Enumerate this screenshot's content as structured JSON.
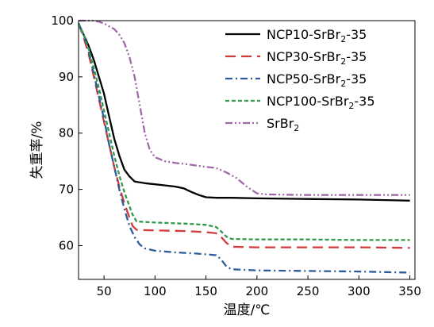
{
  "chart_data": {
    "type": "line",
    "title": "",
    "xlabel": "温度/℃",
    "ylabel": "失重率/%",
    "xlim": [
      25,
      355
    ],
    "ylim": [
      54,
      100
    ],
    "xticks": [
      50,
      100,
      150,
      200,
      250,
      300,
      350
    ],
    "yticks": [
      60,
      70,
      80,
      90,
      100
    ],
    "grid": false,
    "legend": "top-right",
    "series": [
      {
        "name": "NCP10-SrBr2-35",
        "legend_parts": [
          [
            "NCP10-SrBr",
            false
          ],
          [
            "2",
            true
          ],
          [
            "-35",
            false
          ]
        ],
        "color": "#000000",
        "dash": "solid",
        "points": [
          [
            25,
            99.5
          ],
          [
            30,
            97.5
          ],
          [
            35,
            95.5
          ],
          [
            40,
            93
          ],
          [
            45,
            90
          ],
          [
            50,
            87
          ],
          [
            55,
            83
          ],
          [
            60,
            79
          ],
          [
            65,
            76
          ],
          [
            70,
            73.5
          ],
          [
            75,
            72.3
          ],
          [
            80,
            71.4
          ],
          [
            90,
            71.1
          ],
          [
            100,
            70.9
          ],
          [
            110,
            70.7
          ],
          [
            120,
            70.5
          ],
          [
            128,
            70.2
          ],
          [
            135,
            69.6
          ],
          [
            143,
            69
          ],
          [
            150,
            68.6
          ],
          [
            160,
            68.5
          ],
          [
            175,
            68.5
          ],
          [
            200,
            68.4
          ],
          [
            250,
            68.3
          ],
          [
            300,
            68.2
          ],
          [
            350,
            68
          ]
        ]
      },
      {
        "name": "NCP30-SrBr2-35",
        "legend_parts": [
          [
            "NCP30-SrBr",
            false
          ],
          [
            "2",
            true
          ],
          [
            "-35",
            false
          ]
        ],
        "color": "#d33a3a",
        "dash": "long",
        "points": [
          [
            25,
            99.5
          ],
          [
            30,
            97
          ],
          [
            35,
            94
          ],
          [
            40,
            90
          ],
          [
            45,
            86
          ],
          [
            50,
            82
          ],
          [
            55,
            78
          ],
          [
            60,
            74
          ],
          [
            65,
            70.5
          ],
          [
            70,
            67.5
          ],
          [
            75,
            65
          ],
          [
            78,
            63.5
          ],
          [
            82,
            62.8
          ],
          [
            100,
            62.7
          ],
          [
            130,
            62.6
          ],
          [
            150,
            62.4
          ],
          [
            160,
            62.2
          ],
          [
            165,
            61.5
          ],
          [
            170,
            60.5
          ],
          [
            175,
            59.8
          ],
          [
            200,
            59.7
          ],
          [
            250,
            59.7
          ],
          [
            300,
            59.7
          ],
          [
            350,
            59.6
          ]
        ]
      },
      {
        "name": "NCP50-SrBr2-35",
        "legend_parts": [
          [
            "NCP50-SrBr",
            false
          ],
          [
            "2",
            true
          ],
          [
            "-35",
            false
          ]
        ],
        "color": "#2c5c9a",
        "dash": "dashdot",
        "points": [
          [
            25,
            99.5
          ],
          [
            30,
            97.5
          ],
          [
            35,
            94.5
          ],
          [
            40,
            90.5
          ],
          [
            45,
            86.5
          ],
          [
            50,
            82.5
          ],
          [
            55,
            78
          ],
          [
            60,
            74
          ],
          [
            65,
            70
          ],
          [
            70,
            66.5
          ],
          [
            75,
            63.5
          ],
          [
            80,
            61.5
          ],
          [
            85,
            60.2
          ],
          [
            90,
            59.5
          ],
          [
            100,
            59.1
          ],
          [
            120,
            58.8
          ],
          [
            140,
            58.6
          ],
          [
            160,
            58.3
          ],
          [
            165,
            57.5
          ],
          [
            170,
            56.3
          ],
          [
            175,
            55.8
          ],
          [
            200,
            55.6
          ],
          [
            250,
            55.5
          ],
          [
            300,
            55.4
          ],
          [
            350,
            55.2
          ]
        ]
      },
      {
        "name": "NCP100-SrBr2-35",
        "legend_parts": [
          [
            "NCP100-SrBr",
            false
          ],
          [
            "2",
            true
          ],
          [
            "-35",
            false
          ]
        ],
        "color": "#2e9a4e",
        "dash": "short",
        "points": [
          [
            25,
            99.5
          ],
          [
            30,
            97.5
          ],
          [
            35,
            95
          ],
          [
            40,
            91.5
          ],
          [
            45,
            88
          ],
          [
            50,
            84
          ],
          [
            55,
            80
          ],
          [
            60,
            76
          ],
          [
            65,
            72.5
          ],
          [
            70,
            69.5
          ],
          [
            75,
            67
          ],
          [
            78,
            65.5
          ],
          [
            82,
            64.3
          ],
          [
            100,
            64.1
          ],
          [
            130,
            63.9
          ],
          [
            150,
            63.7
          ],
          [
            160,
            63.3
          ],
          [
            165,
            62.5
          ],
          [
            170,
            61.6
          ],
          [
            175,
            61.2
          ],
          [
            200,
            61.1
          ],
          [
            250,
            61.1
          ],
          [
            300,
            61
          ],
          [
            350,
            61
          ]
        ]
      },
      {
        "name": "SrBr2",
        "legend_parts": [
          [
            "SrBr",
            false
          ],
          [
            "2",
            true
          ]
        ],
        "color": "#a06aa8",
        "dash": "dashdotdot",
        "points": [
          [
            25,
            100
          ],
          [
            40,
            100
          ],
          [
            45,
            99.8
          ],
          [
            50,
            99.5
          ],
          [
            55,
            99
          ],
          [
            60,
            98.5
          ],
          [
            65,
            97.5
          ],
          [
            70,
            96
          ],
          [
            75,
            93.5
          ],
          [
            80,
            90
          ],
          [
            85,
            85
          ],
          [
            90,
            80
          ],
          [
            95,
            77
          ],
          [
            100,
            75.7
          ],
          [
            110,
            75
          ],
          [
            120,
            74.7
          ],
          [
            130,
            74.5
          ],
          [
            150,
            74
          ],
          [
            160,
            73.8
          ],
          [
            170,
            73
          ],
          [
            180,
            72
          ],
          [
            190,
            70.5
          ],
          [
            200,
            69.3
          ],
          [
            210,
            69.1
          ],
          [
            250,
            69
          ],
          [
            300,
            69
          ],
          [
            350,
            69
          ]
        ]
      }
    ]
  }
}
